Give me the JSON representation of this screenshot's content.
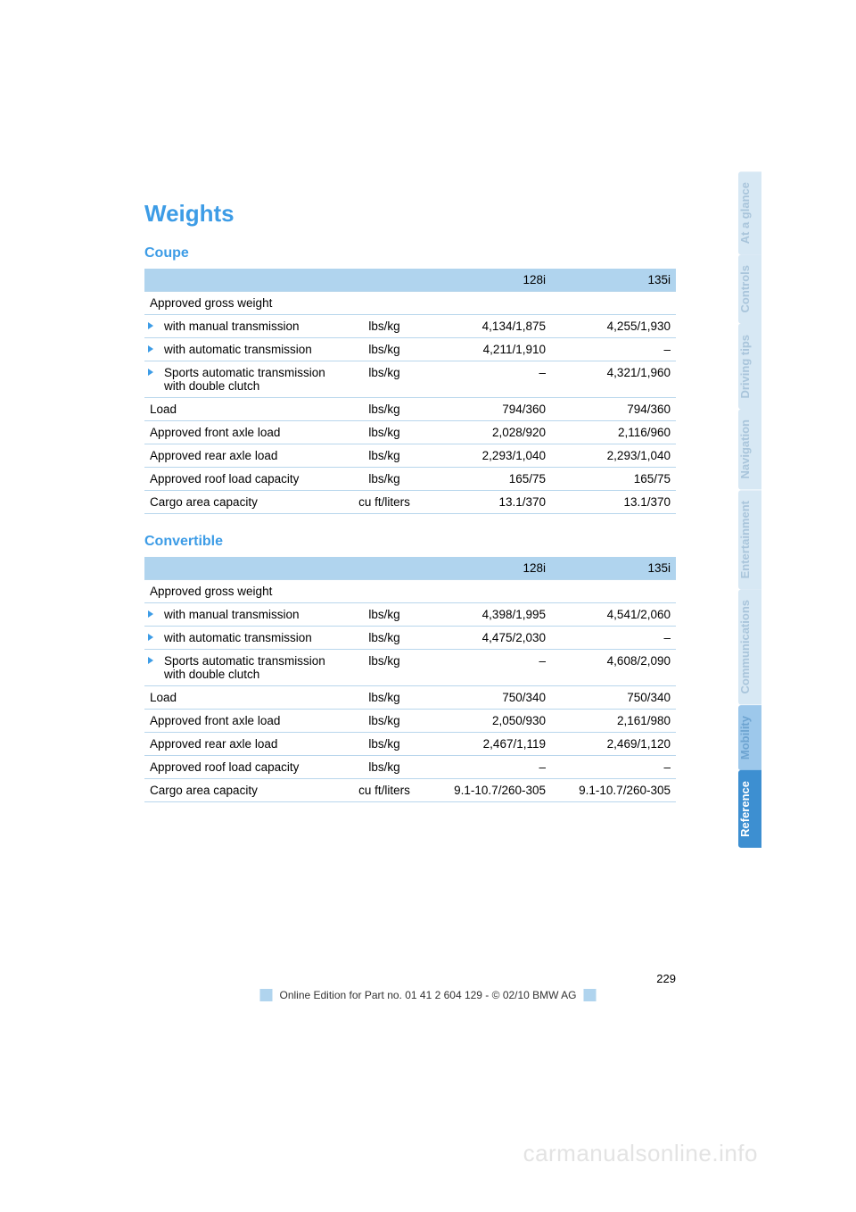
{
  "colors": {
    "accent_blue": "#3d9ce6",
    "header_bg": "#b0d4ee",
    "row_border": "#b8d6ec",
    "tab_pale_bg": "#d7e8f4",
    "tab_pale_text": "#a9c5db",
    "tab_mid_bg": "#9dc8eb",
    "tab_mid_text": "#6ea4d1",
    "tab_dark_bg": "#3d8fd1",
    "tab_dark_text": "#ffffff",
    "watermark": "#e3e3e3"
  },
  "tabs": [
    {
      "label": "At a glance",
      "style": "pale"
    },
    {
      "label": "Controls",
      "style": "pale"
    },
    {
      "label": "Driving tips",
      "style": "pale"
    },
    {
      "label": "Navigation",
      "style": "pale"
    },
    {
      "label": "Entertainment",
      "style": "pale"
    },
    {
      "label": "Communications",
      "style": "pale"
    },
    {
      "label": "Mobility",
      "style": "mid"
    },
    {
      "label": "Reference",
      "style": "dark"
    }
  ],
  "title": "Weights",
  "tables": [
    {
      "heading": "Coupe",
      "columns": [
        "",
        "",
        "128i",
        "135i"
      ],
      "rows": [
        {
          "label": "Approved gross weight",
          "unit": "",
          "v1": "",
          "v2": "",
          "bullet": false
        },
        {
          "label": "with manual transmission",
          "unit": "lbs/kg",
          "v1": "4,134/1,875",
          "v2": "4,255/1,930",
          "bullet": true
        },
        {
          "label": "with automatic transmission",
          "unit": "lbs/kg",
          "v1": "4,211/1,910",
          "v2": "–",
          "bullet": true
        },
        {
          "label": "Sports automatic transmission with double clutch",
          "unit": "lbs/kg",
          "v1": "–",
          "v2": "4,321/1,960",
          "bullet": true
        },
        {
          "label": "Load",
          "unit": "lbs/kg",
          "v1": "794/360",
          "v2": "794/360",
          "bullet": false
        },
        {
          "label": "Approved front axle load",
          "unit": "lbs/kg",
          "v1": "2,028/920",
          "v2": "2,116/960",
          "bullet": false
        },
        {
          "label": "Approved rear axle load",
          "unit": "lbs/kg",
          "v1": "2,293/1,040",
          "v2": "2,293/1,040",
          "bullet": false
        },
        {
          "label": "Approved roof load capacity",
          "unit": "lbs/kg",
          "v1": "165/75",
          "v2": "165/75",
          "bullet": false
        },
        {
          "label": "Cargo area capacity",
          "unit": "cu ft/liters",
          "v1": "13.1/370",
          "v2": "13.1/370",
          "bullet": false
        }
      ]
    },
    {
      "heading": "Convertible",
      "columns": [
        "",
        "",
        "128i",
        "135i"
      ],
      "rows": [
        {
          "label": "Approved gross weight",
          "unit": "",
          "v1": "",
          "v2": "",
          "bullet": false
        },
        {
          "label": "with manual transmission",
          "unit": "lbs/kg",
          "v1": "4,398/1,995",
          "v2": "4,541/2,060",
          "bullet": true
        },
        {
          "label": "with automatic transmission",
          "unit": "lbs/kg",
          "v1": "4,475/2,030",
          "v2": "–",
          "bullet": true
        },
        {
          "label": "Sports automatic transmission with double clutch",
          "unit": "lbs/kg",
          "v1": "–",
          "v2": "4,608/2,090",
          "bullet": true
        },
        {
          "label": "Load",
          "unit": "lbs/kg",
          "v1": "750/340",
          "v2": "750/340",
          "bullet": false
        },
        {
          "label": "Approved front axle load",
          "unit": "lbs/kg",
          "v1": "2,050/930",
          "v2": "2,161/980",
          "bullet": false
        },
        {
          "label": "Approved rear axle load",
          "unit": "lbs/kg",
          "v1": "2,467/1,119",
          "v2": "2,469/1,120",
          "bullet": false
        },
        {
          "label": "Approved roof load capacity",
          "unit": "lbs/kg",
          "v1": "–",
          "v2": "–",
          "bullet": false
        },
        {
          "label": "Cargo area capacity",
          "unit": "cu ft/liters",
          "v1": "9.1-10.7/260-305",
          "v2": "9.1-10.7/260-305",
          "bullet": false
        }
      ]
    }
  ],
  "page_number": "229",
  "footer_text": "Online Edition for Part no. 01 41 2 604 129 - © 02/10 BMW AG",
  "watermark": "carmanualsonline.info"
}
